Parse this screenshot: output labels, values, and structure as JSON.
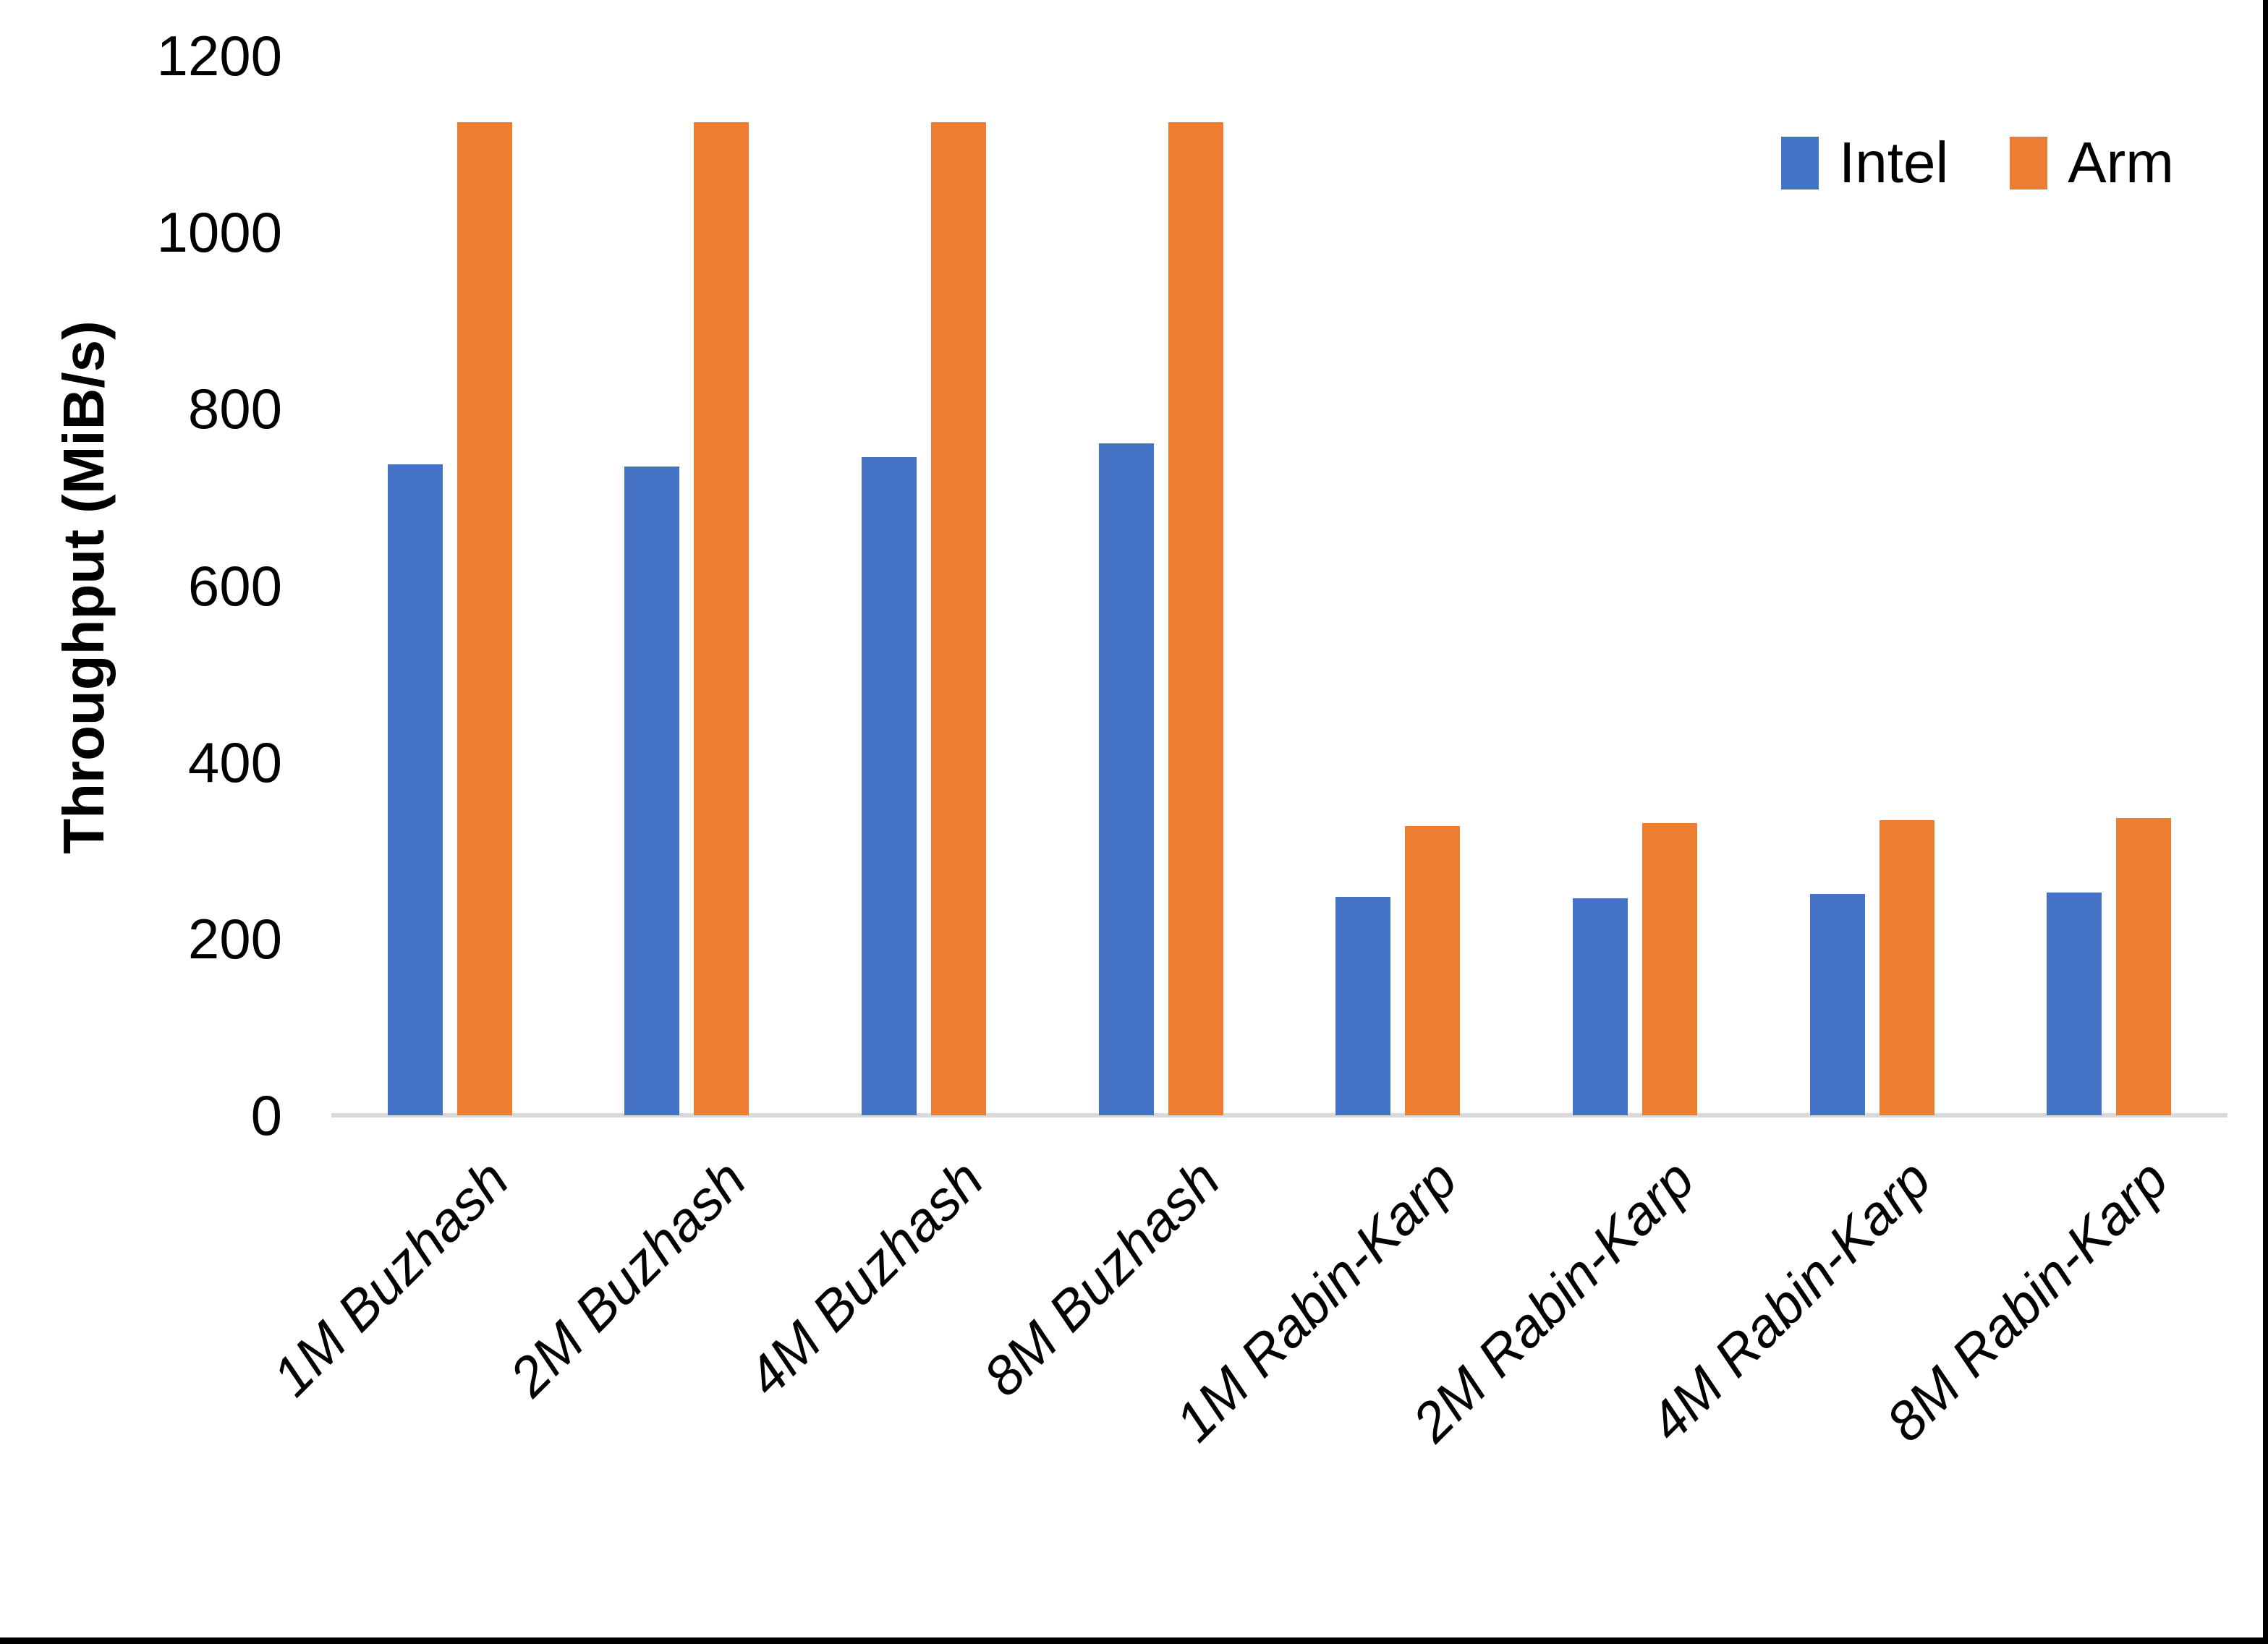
{
  "y_axis_title": "Throughput (MiB/s)",
  "legend": {
    "items": [
      {
        "label": "Intel",
        "color": "#4472C4"
      },
      {
        "label": "Arm",
        "color": "#ED7D31"
      }
    ]
  },
  "colors": {
    "intel_series": "#4472C4",
    "arm_series": "#ED7D31",
    "axis_line": "#D9D9D9",
    "text": "#000000",
    "window_border": "#000000",
    "background": "#FFFFFF"
  },
  "chart_data": {
    "type": "bar",
    "categories": [
      "1M Buzhash",
      "2M Buzhash",
      "4M Buzhash",
      "8M Buzhash",
      "1M Rabin-Karp",
      "2M Rabin-Karp",
      "4M Rabin-Karp",
      "8M Rabin-Karp"
    ],
    "series": [
      {
        "name": "Intel",
        "color": "#4472C4",
        "values": [
          737,
          735,
          745,
          761,
          247,
          246,
          251,
          252
        ]
      },
      {
        "name": "Arm",
        "color": "#ED7D31",
        "values": [
          1125,
          1125,
          1125,
          1125,
          328,
          331,
          334,
          337
        ]
      }
    ],
    "title": "",
    "xlabel": "",
    "ylabel": "Throughput (MiB/s)",
    "ylim": [
      0,
      1200
    ],
    "yticks": [
      0,
      200,
      400,
      600,
      800,
      1000,
      1200
    ],
    "grid": false,
    "legend_position": "top-right",
    "x_tick_label_rotation_deg": 45,
    "x_tick_label_style": "italic"
  }
}
